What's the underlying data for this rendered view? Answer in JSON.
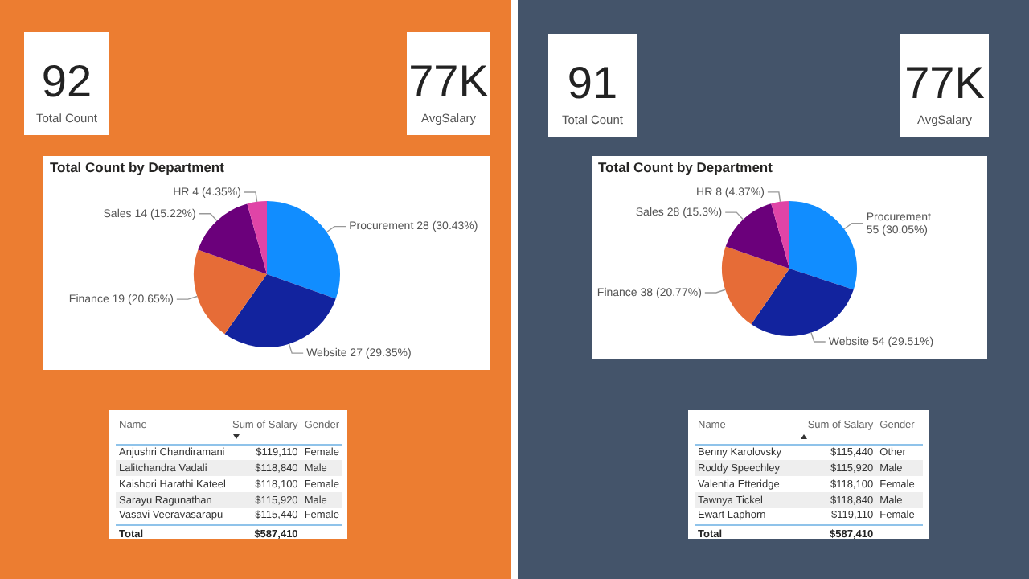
{
  "chart_data": [
    {
      "type": "other",
      "annotations": [
        "92",
        "Total Count"
      ]
    },
    {
      "type": "other",
      "annotations": [
        "77K",
        "AvgSalary"
      ]
    },
    {
      "type": "pie",
      "title": "Total Count by Department",
      "categories": [
        "Procurement",
        "Website",
        "Finance",
        "Sales",
        "HR"
      ],
      "values": [
        28,
        27,
        19,
        14,
        4
      ],
      "colors": [
        "#118dff",
        "#12239e",
        "#e66c37",
        "#6b007b",
        "#e044a7"
      ],
      "value_labels": [
        "28 (30.43%)",
        "27 (29.35%)",
        "19 (20.65%)",
        "14 (15.22%)",
        "4 (4.35%)"
      ]
    },
    {
      "type": "other",
      "annotations": [
        "Name",
        "Sum of Salary",
        "Gender",
        "Anjushri Chandiramani",
        "$119,110",
        "Female",
        "Lalitchandra Vadali",
        "$118,840",
        "Male",
        "Kaishori Harathi Kateel",
        "$118,100",
        "Female",
        "Sarayu Ragunathan",
        "$115,920",
        "Male",
        "Vasavi Veeravasarapu",
        "$115,440",
        "Female",
        "Total",
        "$587,410"
      ]
    },
    {
      "type": "other",
      "annotations": [
        "91",
        "Total Count"
      ]
    },
    {
      "type": "other",
      "annotations": [
        "77K",
        "AvgSalary"
      ]
    },
    {
      "type": "pie",
      "title": "Total Count by Department",
      "categories": [
        "Procurement",
        "Website",
        "Finance",
        "Sales",
        "HR"
      ],
      "values": [
        55,
        54,
        38,
        28,
        8
      ],
      "colors": [
        "#118dff",
        "#12239e",
        "#e66c37",
        "#6b007b",
        "#e044a7"
      ],
      "value_labels": [
        "55 (30.05%)",
        "54 (29.51%)",
        "38 (20.77%)",
        "28 (15.3%)",
        "8 (4.37%)"
      ]
    },
    {
      "type": "other",
      "annotations": [
        "Name",
        "Sum of Salary",
        "Gender",
        "Benny Karolovsky",
        "$115,440",
        "Other",
        "Roddy Speechley",
        "$115,920",
        "Male",
        "Valentia Etteridge",
        "$118,100",
        "Female",
        "Tawnya Tickel",
        "$118,840",
        "Male",
        "Ewart Laphorn",
        "$119,110",
        "Female",
        "Total",
        "$587,410"
      ]
    }
  ]
}
